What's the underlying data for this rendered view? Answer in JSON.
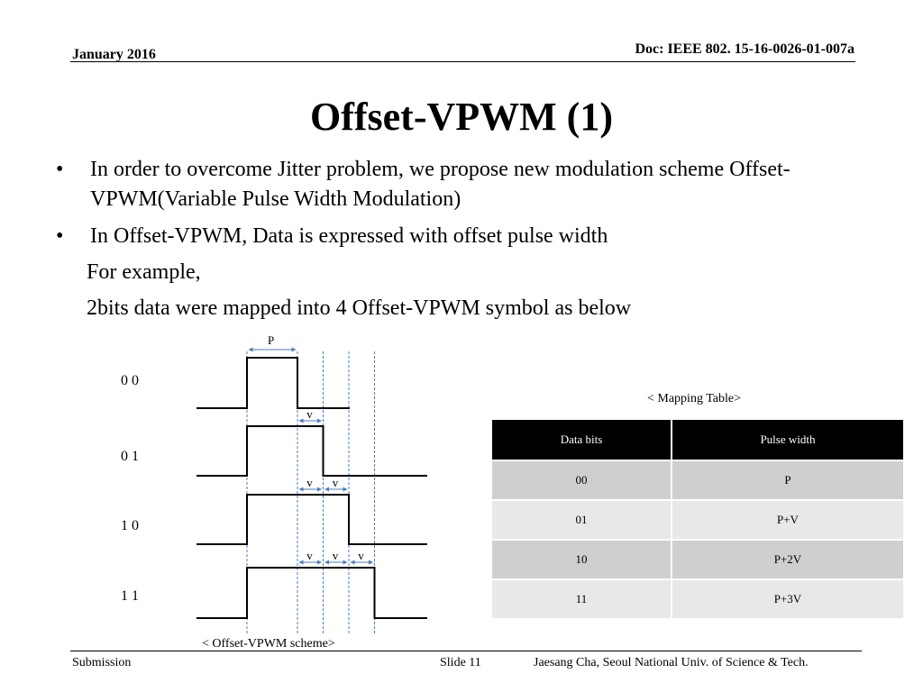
{
  "header": {
    "date": "January 2016",
    "doc": "Doc: IEEE 802. 15-16-0026-01-007a"
  },
  "title": "Offset-VPWM  (1)",
  "bullets": [
    "In order to overcome Jitter problem, we propose new modulation scheme Offset-VPWM(Variable Pulse Width Modulation)",
    "In Offset-VPWM, Data is expressed with offset pulse width"
  ],
  "sub_lines": [
    "For example,",
    "2bits data were mapped into 4 Offset-VPWM symbol as below"
  ],
  "scheme": {
    "caption": "< Offset-VPWM scheme>",
    "p_label": "P",
    "v_label": "v",
    "symbols": [
      {
        "label": "0 0",
        "extra_v": 0
      },
      {
        "label": "0 1",
        "extra_v": 1
      },
      {
        "label": "1 0",
        "extra_v": 2
      },
      {
        "label": "1 1",
        "extra_v": 3
      }
    ]
  },
  "mapping_table": {
    "caption": "< Mapping Table>",
    "headers": [
      "Data bits",
      "Pulse width"
    ],
    "rows": [
      [
        "00",
        "P"
      ],
      [
        "01",
        "P+V"
      ],
      [
        "10",
        "P+2V"
      ],
      [
        "11",
        "P+3V"
      ]
    ]
  },
  "footer": {
    "left": "Submission",
    "slide": "Slide 11",
    "author": "Jaesang Cha, Seoul National Univ. of  Science & Tech."
  }
}
